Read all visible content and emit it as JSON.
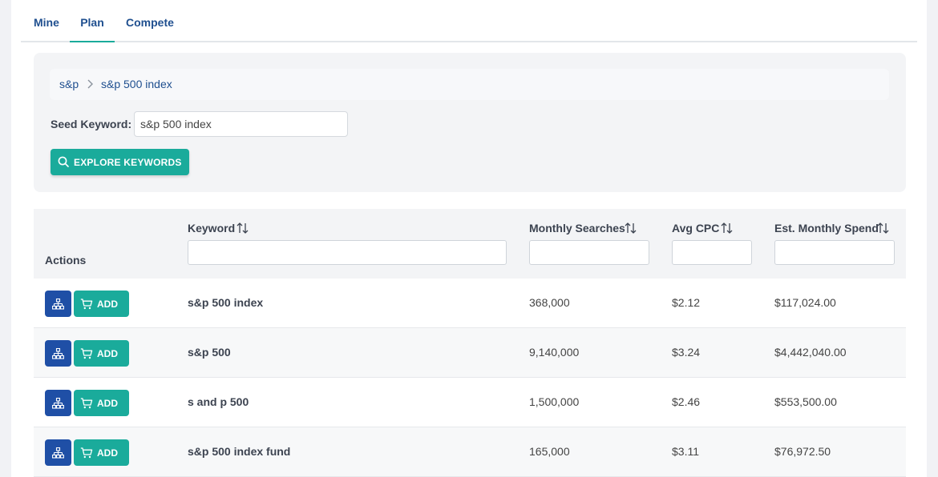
{
  "tabs": [
    {
      "label": "Mine"
    },
    {
      "label": "Plan",
      "active": true
    },
    {
      "label": "Compete"
    }
  ],
  "breadcrumb": [
    "s&p",
    "s&p 500 index"
  ],
  "seed": {
    "label": "Seed Keyword:",
    "value": "s&p 500 index"
  },
  "explore_button": "Explore Keywords",
  "table": {
    "headers": {
      "actions": "Actions",
      "keyword": "Keyword",
      "monthly_searches": "Monthly Searches",
      "avg_cpc": "Avg CPC",
      "est_spend": "Est. Monthly Spend"
    },
    "rows": [
      {
        "keyword": "s&p 500 index",
        "monthly_searches": "368,000",
        "avg_cpc": "$2.12",
        "est_spend": "$117,024.00"
      },
      {
        "keyword": "s&p 500",
        "monthly_searches": "9,140,000",
        "avg_cpc": "$3.24",
        "est_spend": "$4,442,040.00"
      },
      {
        "keyword": "s and p 500",
        "monthly_searches": "1,500,000",
        "avg_cpc": "$2.46",
        "est_spend": "$553,500.00"
      },
      {
        "keyword": "s&p 500 index fund",
        "monthly_searches": "165,000",
        "avg_cpc": "$3.11",
        "est_spend": "$76,972.50"
      }
    ],
    "add_label": "Add"
  },
  "colors": {
    "accent_teal": "#1aab9b",
    "brand_blue": "#1f4fa6",
    "link_blue": "#1f4f8f"
  },
  "icons": [
    "chevron-right-icon",
    "search-icon",
    "sort-icon",
    "sitemap-icon",
    "cart-icon"
  ]
}
